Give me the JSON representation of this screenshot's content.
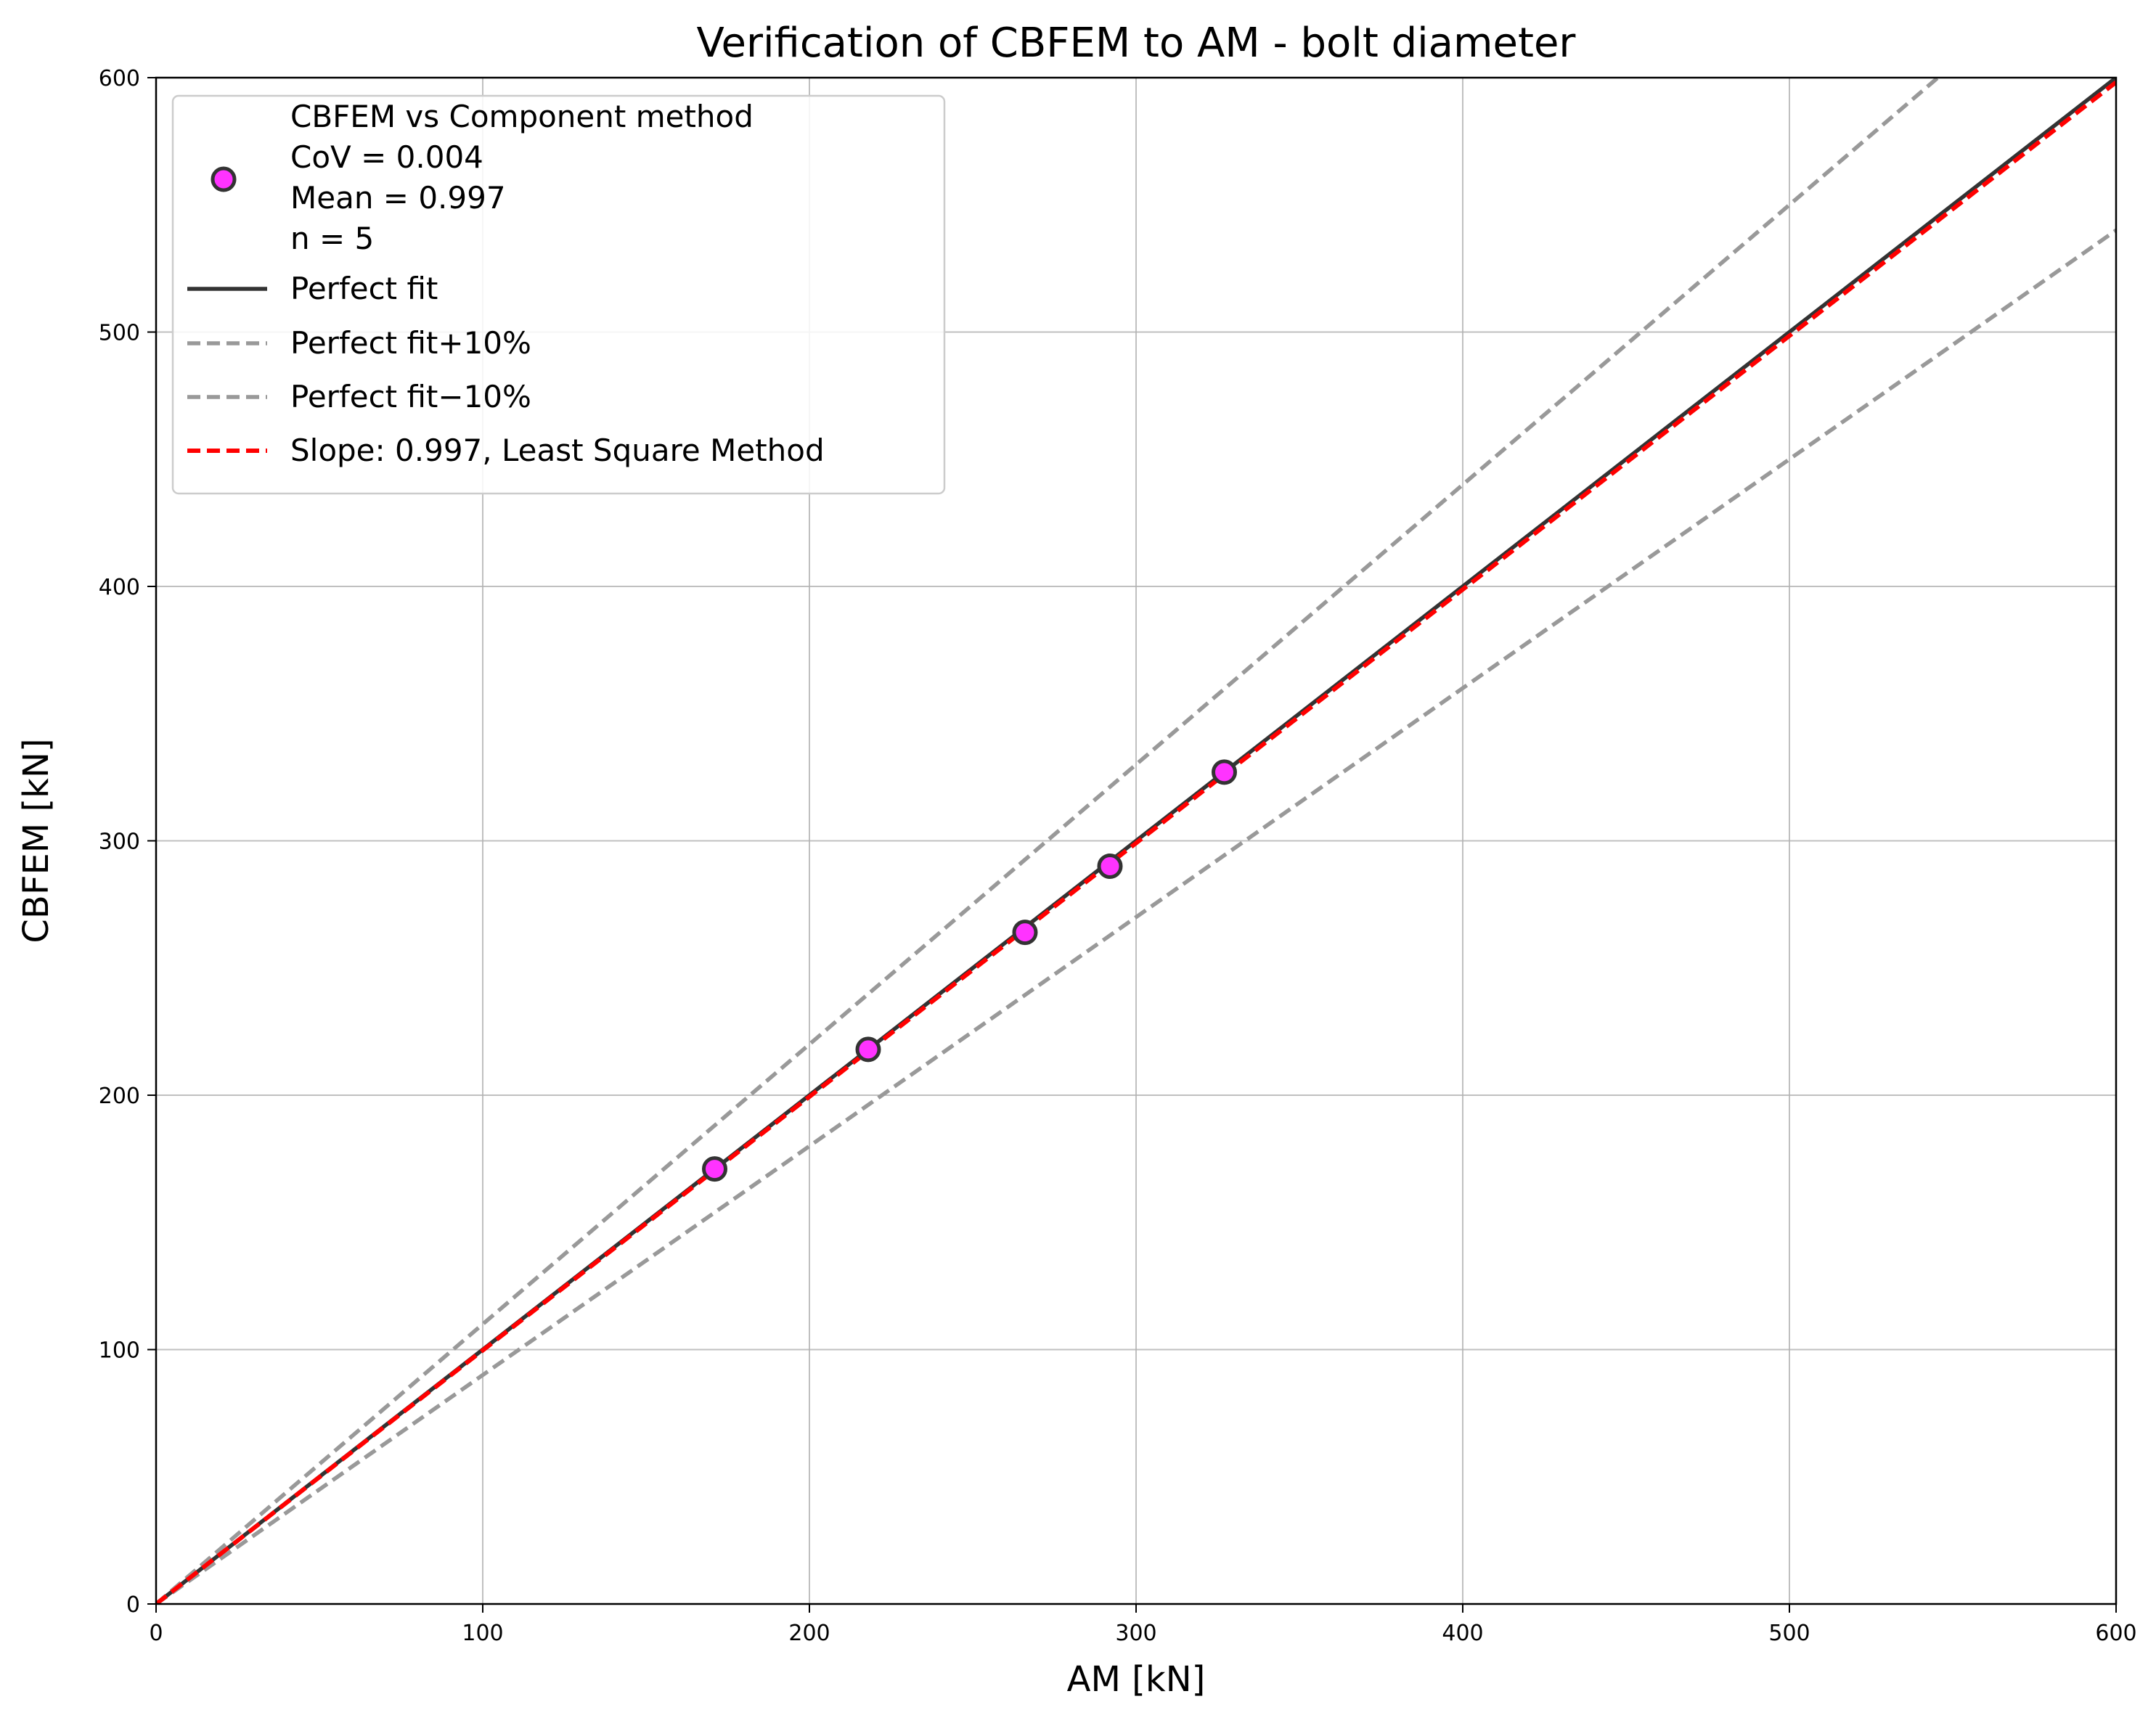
{
  "chart_data": {
    "type": "scatter",
    "title": "Verification of CBFEM to AM - bolt diameter",
    "xlabel": "AM [kN]",
    "ylabel": "CBFEM [kN]",
    "xlim": [
      0,
      600
    ],
    "ylim": [
      0,
      600
    ],
    "xticks": [
      "0",
      "100",
      "200",
      "300",
      "400",
      "500",
      "600"
    ],
    "yticks": [
      "0",
      "100",
      "200",
      "300",
      "400",
      "500",
      "600"
    ],
    "grid": true,
    "legend_position": "top-left",
    "series": [
      {
        "kind": "scatter",
        "name": "CBFEM vs Component method",
        "stats": [
          "CoV = 0.004",
          "Mean = 0.997",
          "n = 5"
        ],
        "color": "#ff33ff",
        "edge_color": "#333333",
        "points": [
          [
            171,
            171
          ],
          [
            218,
            218
          ],
          [
            266,
            264
          ],
          [
            292,
            290
          ],
          [
            327,
            327
          ]
        ]
      },
      {
        "kind": "line",
        "name": "Perfect fit",
        "slope": 1.0,
        "color": "#333333",
        "dash": "solid"
      },
      {
        "kind": "line",
        "name": "Perfect fit+10%",
        "slope": 1.1,
        "color": "#999999",
        "dash": "dashed"
      },
      {
        "kind": "line",
        "name": "Perfect fit−10%",
        "slope": 0.9,
        "color": "#999999",
        "dash": "dashed"
      },
      {
        "kind": "line",
        "name": "Slope: 0.997, Least Square Method",
        "slope": 0.997,
        "color": "#ff0000",
        "dash": "dashed"
      }
    ]
  }
}
